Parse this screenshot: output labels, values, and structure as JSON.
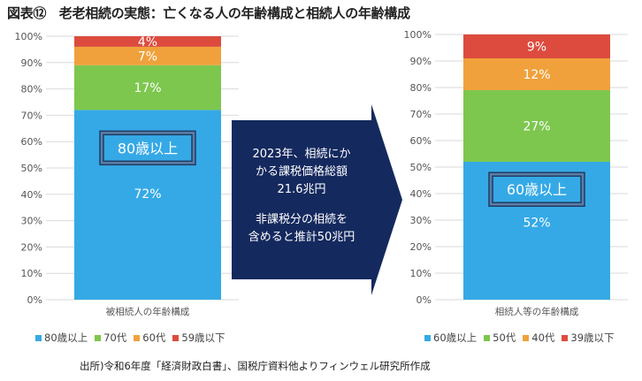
{
  "title": "図表⑫　老老相続の実態：亡くなる人の年齢構成と相続人の年齢構成",
  "chart_data": [
    {
      "type": "bar",
      "stacked": true,
      "categories": [
        "被相続人の年齢構成"
      ],
      "yticks": [
        "0%",
        "10%",
        "20%",
        "30%",
        "40%",
        "50%",
        "60%",
        "70%",
        "80%",
        "90%",
        "100%"
      ],
      "ylim": [
        0,
        100
      ],
      "series": [
        {
          "name": "80歳以上",
          "values": [
            72
          ],
          "color": "#35A9E6",
          "label": "72%"
        },
        {
          "name": "70代",
          "values": [
            17
          ],
          "color": "#7DC74E",
          "label": "17%"
        },
        {
          "name": "60代",
          "values": [
            7
          ],
          "color": "#F0A13C",
          "label": "7%"
        },
        {
          "name": "59歳以下",
          "values": [
            4
          ],
          "color": "#DD4B3E",
          "label": "4%"
        }
      ],
      "callout": "80歳以上"
    },
    {
      "type": "bar",
      "stacked": true,
      "categories": [
        "相続人等の年齢構成"
      ],
      "yticks": [
        "0%",
        "10%",
        "20%",
        "30%",
        "40%",
        "50%",
        "60%",
        "70%",
        "80%",
        "90%",
        "100%"
      ],
      "ylim": [
        0,
        100
      ],
      "series": [
        {
          "name": "60歳以上",
          "values": [
            52
          ],
          "color": "#35A9E6",
          "label": "52%"
        },
        {
          "name": "50代",
          "values": [
            27
          ],
          "color": "#7DC74E",
          "label": "27%"
        },
        {
          "name": "40代",
          "values": [
            12
          ],
          "color": "#F0A13C",
          "label": "12%"
        },
        {
          "name": "39歳以下",
          "values": [
            9
          ],
          "color": "#DD4B3E",
          "label": "9%"
        }
      ],
      "callout": "60歳以上"
    }
  ],
  "arrow": {
    "lines": [
      "2023年、相続にか",
      "かる課税価格総額",
      "21.6兆円",
      "",
      "非課税分の相続を",
      "含めると推計50兆円"
    ],
    "color": "#14295E"
  },
  "source": "出所)令和6年度「経済財政白書」、国税庁資料他よりフィンウェル研究所作成"
}
